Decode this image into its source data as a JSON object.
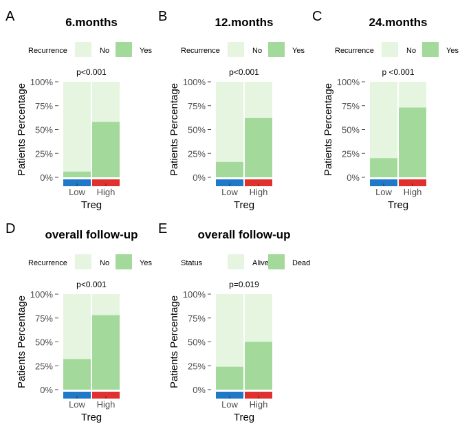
{
  "colors": {
    "lower_segment": "#a3d99a",
    "upper_segment": "#e5f5e0",
    "strip_low": "#1f78c8",
    "strip_high": "#e0312f",
    "axis_text": "#4d4d4d",
    "title_text": "#000000"
  },
  "chart_data": [
    {
      "panel": "A",
      "type": "bar",
      "stacked": true,
      "title": "6.months",
      "legend_title": "Recurrence",
      "legend_labels": [
        "No",
        "Yes"
      ],
      "p_value": "p<0.001",
      "xlabel": "Treg",
      "ylabel": "Patients Percentage",
      "categories": [
        "Low",
        "High"
      ],
      "ticks": [
        "0%",
        "25%",
        "50%",
        "75%",
        "100%"
      ],
      "ylim": [
        0,
        100
      ],
      "series": [
        {
          "name": "Yes",
          "values": [
            6,
            58
          ]
        },
        {
          "name": "No",
          "values": [
            94,
            42
          ]
        }
      ]
    },
    {
      "panel": "B",
      "type": "bar",
      "stacked": true,
      "title": "12.months",
      "legend_title": "Recurrence",
      "legend_labels": [
        "No",
        "Yes"
      ],
      "p_value": "p<0.001",
      "xlabel": "Treg",
      "ylabel": "Patients Percentage",
      "categories": [
        "Low",
        "High"
      ],
      "ticks": [
        "0%",
        "25%",
        "50%",
        "75%",
        "100%"
      ],
      "ylim": [
        0,
        100
      ],
      "series": [
        {
          "name": "Yes",
          "values": [
            16,
            62
          ]
        },
        {
          "name": "No",
          "values": [
            84,
            38
          ]
        }
      ]
    },
    {
      "panel": "C",
      "type": "bar",
      "stacked": true,
      "title": "24.months",
      "legend_title": "Recurrence",
      "legend_labels": [
        "No",
        "Yes"
      ],
      "p_value": "p <0.001",
      "xlabel": "Treg",
      "ylabel": "Patients Percentage",
      "categories": [
        "Low",
        "High"
      ],
      "ticks": [
        "0%",
        "25%",
        "50%",
        "75%",
        "100%"
      ],
      "ylim": [
        0,
        100
      ],
      "series": [
        {
          "name": "Yes",
          "values": [
            20,
            73
          ]
        },
        {
          "name": "No",
          "values": [
            80,
            27
          ]
        }
      ]
    },
    {
      "panel": "D",
      "type": "bar",
      "stacked": true,
      "title": "overall follow-up",
      "legend_title": "Recurrence",
      "legend_labels": [
        "No",
        "Yes"
      ],
      "p_value": "p<0.001",
      "xlabel": "Treg",
      "ylabel": "Patients Percentage",
      "categories": [
        "Low",
        "High"
      ],
      "ticks": [
        "0%",
        "25%",
        "50%",
        "75%",
        "100%"
      ],
      "ylim": [
        0,
        100
      ],
      "series": [
        {
          "name": "Yes",
          "values": [
            32,
            78
          ]
        },
        {
          "name": "No",
          "values": [
            68,
            22
          ]
        }
      ]
    },
    {
      "panel": "E",
      "type": "bar",
      "stacked": true,
      "title": "overall follow-up",
      "legend_title": "Status",
      "legend_labels": [
        "Alive",
        "Dead"
      ],
      "p_value": "p=0.019",
      "xlabel": "Treg",
      "ylabel": "Patients Percentage",
      "categories": [
        "Low",
        "High"
      ],
      "ticks": [
        "0%",
        "25%",
        "50%",
        "75%",
        "100%"
      ],
      "ylim": [
        0,
        100
      ],
      "series": [
        {
          "name": "Dead",
          "values": [
            24,
            50
          ]
        },
        {
          "name": "Alive",
          "values": [
            76,
            50
          ]
        }
      ]
    }
  ]
}
